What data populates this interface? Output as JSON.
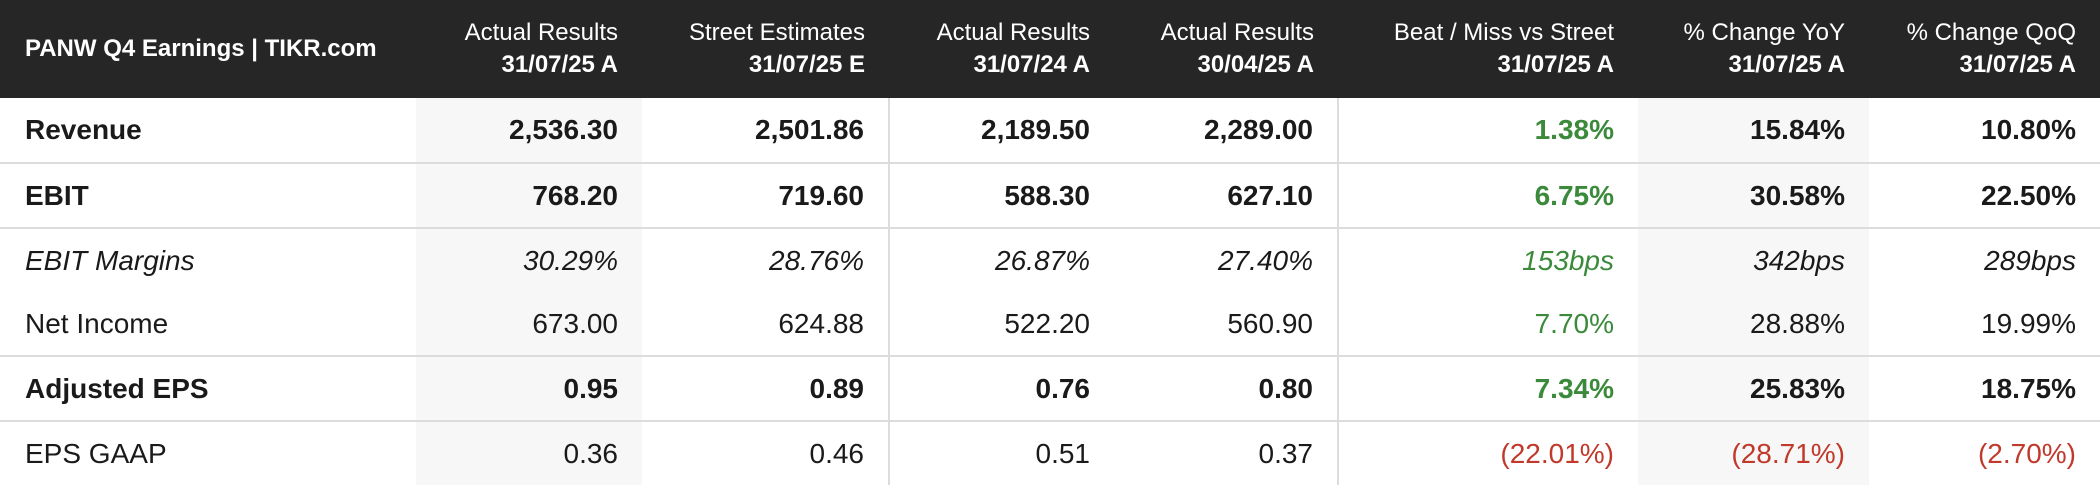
{
  "chart_data": {
    "type": "table",
    "title": "PANW Q4 Earnings | TIKR.com",
    "columns": [
      {
        "name": "Actual Results",
        "period": "31/07/25 A"
      },
      {
        "name": "Street Estimates",
        "period": "31/07/25 E"
      },
      {
        "name": "Actual Results",
        "period": "31/07/24 A"
      },
      {
        "name": "Actual Results",
        "period": "30/04/25 A"
      },
      {
        "name": "Beat / Miss vs Street",
        "period": "31/07/25 A"
      },
      {
        "name": "% Change YoY",
        "period": "31/07/25 A"
      },
      {
        "name": "% Change QoQ",
        "period": "31/07/25 A"
      }
    ],
    "rows": [
      {
        "label": "Revenue",
        "style": "bold",
        "values": [
          "2,536.30",
          "2,501.86",
          "2,189.50",
          "2,289.00",
          "1.38%",
          "15.84%",
          "10.80%"
        ],
        "beat_color": "#3b8a3b",
        "change_color": "#1a1a1a"
      },
      {
        "label": "EBIT",
        "style": "bold",
        "values": [
          "768.20",
          "719.60",
          "588.30",
          "627.10",
          "6.75%",
          "30.58%",
          "22.50%"
        ],
        "beat_color": "#3b8a3b",
        "change_color": "#1a1a1a"
      },
      {
        "label": "EBIT Margins",
        "style": "italic",
        "values": [
          "30.29%",
          "28.76%",
          "26.87%",
          "27.40%",
          "153bps",
          "342bps",
          "289bps"
        ],
        "beat_color": "#3b8a3b",
        "change_color": "#1a1a1a"
      },
      {
        "label": "Net Income",
        "style": "normal",
        "values": [
          "673.00",
          "624.88",
          "522.20",
          "560.90",
          "7.70%",
          "28.88%",
          "19.99%"
        ],
        "beat_color": "#3b8a3b",
        "change_color": "#1a1a1a"
      },
      {
        "label": "Adjusted EPS",
        "style": "bold",
        "values": [
          "0.95",
          "0.89",
          "0.76",
          "0.80",
          "7.34%",
          "25.83%",
          "18.75%"
        ],
        "beat_color": "#3b8a3b",
        "change_color": "#1a1a1a"
      },
      {
        "label": "EPS GAAP",
        "style": "normal",
        "values": [
          "0.36",
          "0.46",
          "0.51",
          "0.37",
          "(22.01%)",
          "(28.71%)",
          "(2.70%)"
        ],
        "beat_color": "#c0392b",
        "change_color": "#c0392b"
      }
    ]
  }
}
